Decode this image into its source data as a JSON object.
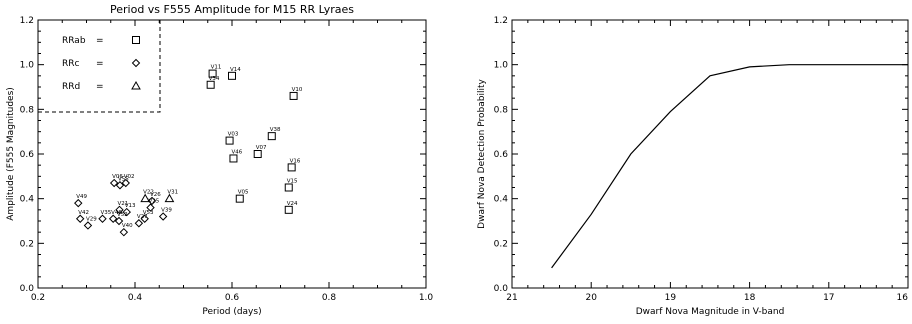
{
  "chart_data": [
    {
      "type": "scatter",
      "title": "Period vs F555 Amplitude for M15 RR Lyraes",
      "xlabel": "Period (days)",
      "ylabel": "Amplitude (F555 Magnitudes)",
      "xlim": [
        0.2,
        1.0
      ],
      "ylim": [
        0.0,
        1.2
      ],
      "xticks": [
        "0.2",
        "0.4",
        "0.6",
        "0.8",
        "1.0"
      ],
      "yticks": [
        "0.0",
        "0.2",
        "0.4",
        "0.6",
        "0.8",
        "1.0",
        "1.2"
      ],
      "grid": false,
      "legend_placement": "top-left",
      "legend": [
        {
          "label": "RRab",
          "marker": "square"
        },
        {
          "label": "RRc",
          "marker": "diamond"
        },
        {
          "label": "RRd",
          "marker": "triangle"
        }
      ],
      "legend_eq": "=",
      "series": [
        {
          "name": "RRab",
          "marker": "square",
          "points": [
            {
              "label": "V11",
              "x": 0.56,
              "y": 0.96
            },
            {
              "label": "V14",
              "x": 0.6,
              "y": 0.95
            },
            {
              "label": "V34",
              "x": 0.556,
              "y": 0.91
            },
            {
              "label": "V10",
              "x": 0.727,
              "y": 0.86
            },
            {
              "label": "V38",
              "x": 0.682,
              "y": 0.68
            },
            {
              "label": "V03",
              "x": 0.595,
              "y": 0.66
            },
            {
              "label": "V07",
              "x": 0.653,
              "y": 0.6
            },
            {
              "label": "V46",
              "x": 0.603,
              "y": 0.58
            },
            {
              "label": "V16",
              "x": 0.723,
              "y": 0.54
            },
            {
              "label": "V15",
              "x": 0.717,
              "y": 0.45
            },
            {
              "label": "V05",
              "x": 0.616,
              "y": 0.4
            },
            {
              "label": "V24",
              "x": 0.717,
              "y": 0.35
            }
          ]
        },
        {
          "name": "RRc",
          "marker": "diamond",
          "points": [
            {
              "label": "V06",
              "x": 0.357,
              "y": 0.47
            },
            {
              "label": "V55",
              "x": 0.369,
              "y": 0.46
            },
            {
              "label": "V02",
              "x": 0.381,
              "y": 0.47
            },
            {
              "label": "V49",
              "x": 0.283,
              "y": 0.38
            },
            {
              "label": "V26",
              "x": 0.435,
              "y": 0.39
            },
            {
              "label": "V25",
              "x": 0.432,
              "y": 0.36
            },
            {
              "label": "V21",
              "x": 0.368,
              "y": 0.35
            },
            {
              "label": "V13",
              "x": 0.383,
              "y": 0.34
            },
            {
              "label": "V39",
              "x": 0.458,
              "y": 0.32
            },
            {
              "label": "V42",
              "x": 0.287,
              "y": 0.31
            },
            {
              "label": "V35",
              "x": 0.333,
              "y": 0.31
            },
            {
              "label": "V48",
              "x": 0.355,
              "y": 0.31
            },
            {
              "label": "V52",
              "x": 0.367,
              "y": 0.3
            },
            {
              "label": "V53",
              "x": 0.42,
              "y": 0.31
            },
            {
              "label": "V29",
              "x": 0.303,
              "y": 0.28
            },
            {
              "label": "V27",
              "x": 0.408,
              "y": 0.29
            },
            {
              "label": "V40",
              "x": 0.377,
              "y": 0.25
            }
          ]
        },
        {
          "name": "RRd",
          "marker": "triangle",
          "points": [
            {
              "label": "V22",
              "x": 0.421,
              "y": 0.4
            },
            {
              "label": "V31",
              "x": 0.471,
              "y": 0.4
            }
          ]
        }
      ]
    },
    {
      "type": "line",
      "title": "",
      "xlabel": "Dwarf Nova Magnitude in V-band",
      "ylabel": "Dwarf Nova Detection Probability",
      "xlim": [
        21,
        16
      ],
      "ylim": [
        0.0,
        1.2
      ],
      "xticks": [
        "21",
        "20",
        "19",
        "18",
        "17",
        "16"
      ],
      "yticks": [
        "0.0",
        "0.2",
        "0.4",
        "0.6",
        "0.8",
        "1.0",
        "1.2"
      ],
      "grid": false,
      "series": [
        {
          "x": [
            20.5,
            20.0,
            19.5,
            19.0,
            18.5,
            18.0,
            17.5,
            17.0,
            16.5,
            16.0
          ],
          "y": [
            0.09,
            0.33,
            0.6,
            0.79,
            0.95,
            0.99,
            1.0,
            1.0,
            1.0,
            1.0
          ]
        }
      ]
    }
  ]
}
